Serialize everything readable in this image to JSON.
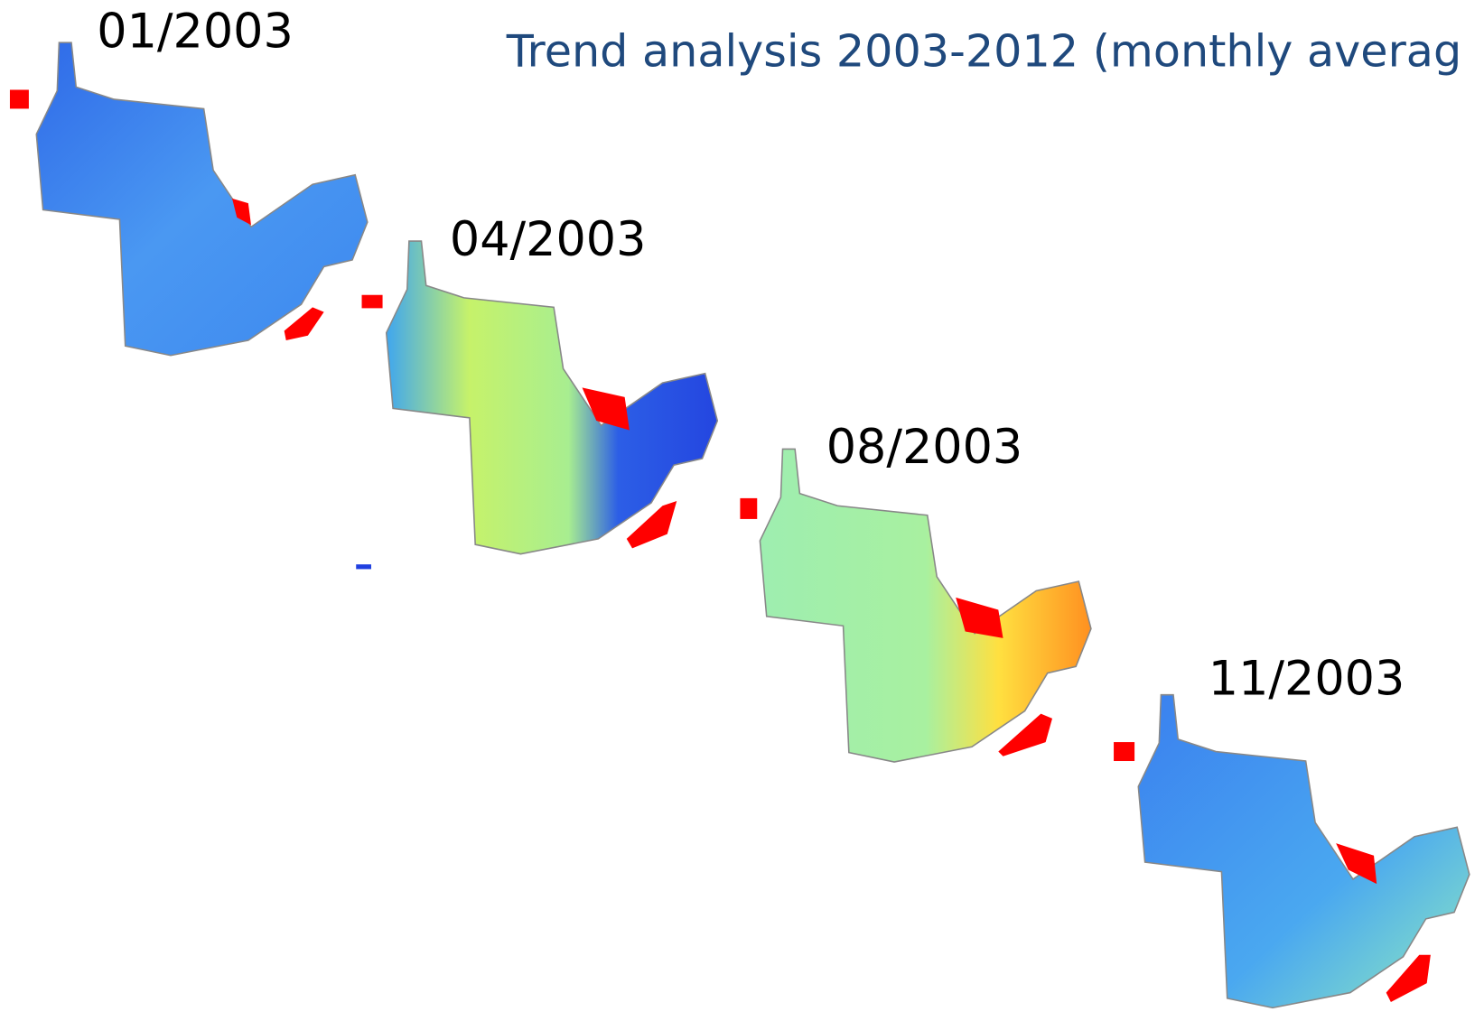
{
  "title": "Trend analysis 2003-2012 (monthly averag",
  "maps": [
    {
      "label": "01/2003"
    },
    {
      "label": "04/2003"
    },
    {
      "label": "08/2003"
    },
    {
      "label": "11/2003"
    }
  ]
}
